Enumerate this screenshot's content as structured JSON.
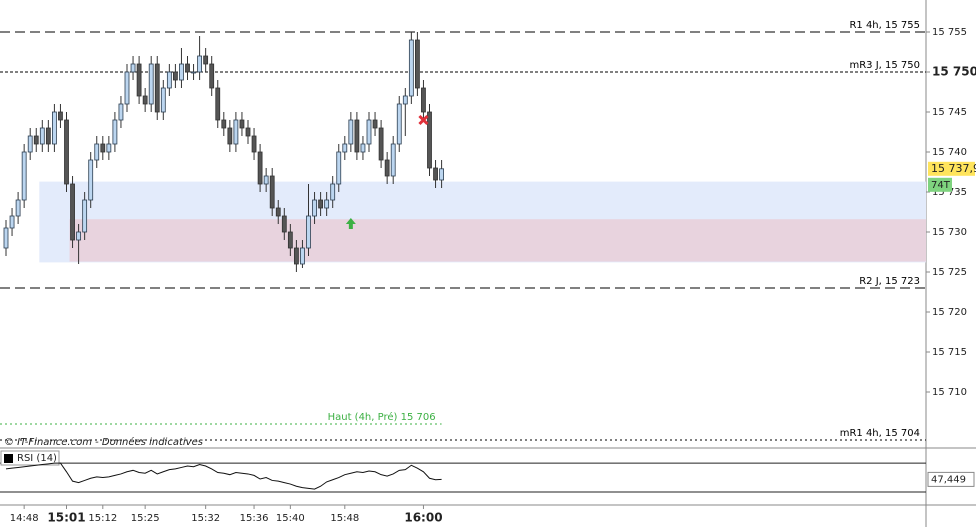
{
  "chart_data": {
    "type": "candlestick",
    "candles": [
      [
        15728,
        15731.5,
        15727,
        15730.5
      ],
      [
        15730.5,
        15733,
        15729.5,
        15732
      ],
      [
        15732,
        15735,
        15731,
        15734
      ],
      [
        15734,
        15741,
        15733,
        15740
      ],
      [
        15740,
        15743,
        15739,
        15742
      ],
      [
        15742,
        15743,
        15740,
        15741
      ],
      [
        15741,
        15744,
        15740,
        15743
      ],
      [
        15743,
        15744,
        15740,
        15741
      ],
      [
        15741,
        15746,
        15740,
        15745
      ],
      [
        15745,
        15746,
        15743,
        15744
      ],
      [
        15744,
        15745,
        15735,
        15736
      ],
      [
        15736,
        15737,
        15728,
        15729
      ],
      [
        15729,
        15731,
        15726,
        15730
      ],
      [
        15730,
        15735,
        15729,
        15734
      ],
      [
        15734,
        15740,
        15733,
        15739
      ],
      [
        15739,
        15742,
        15738,
        15741
      ],
      [
        15741,
        15742,
        15739,
        15740
      ],
      [
        15740,
        15742,
        15739,
        15741
      ],
      [
        15741,
        15745,
        15740,
        15744
      ],
      [
        15744,
        15747,
        15743,
        15746
      ],
      [
        15746,
        15751,
        15745,
        15750
      ],
      [
        15750,
        15752,
        15749,
        15751
      ],
      [
        15751,
        15752,
        15746,
        15747
      ],
      [
        15747,
        15748,
        15745,
        15746
      ],
      [
        15746,
        15752,
        15745,
        15751
      ],
      [
        15751,
        15752,
        15744,
        15745
      ],
      [
        15745,
        15749,
        15744,
        15748
      ],
      [
        15748,
        15751,
        15747,
        15750
      ],
      [
        15750,
        15751,
        15748,
        15749
      ],
      [
        15749,
        15753,
        15748,
        15751
      ],
      [
        15751,
        15752,
        15749,
        15750
      ],
      [
        15750,
        15751,
        15749,
        15750
      ],
      [
        15750,
        15754.5,
        15749,
        15752
      ],
      [
        15752,
        15753,
        15750,
        15751
      ],
      [
        15751,
        15752,
        15747,
        15748
      ],
      [
        15748,
        15749,
        15743,
        15744
      ],
      [
        15744,
        15745,
        15742,
        15743
      ],
      [
        15743,
        15744,
        15740,
        15741
      ],
      [
        15741,
        15745,
        15740,
        15744
      ],
      [
        15744,
        15745,
        15742,
        15743
      ],
      [
        15743,
        15744,
        15741,
        15742
      ],
      [
        15742,
        15743,
        15739,
        15740
      ],
      [
        15740,
        15741,
        15735,
        15736
      ],
      [
        15736,
        15738,
        15735,
        15737
      ],
      [
        15737,
        15738,
        15732,
        15733
      ],
      [
        15733,
        15734,
        15731,
        15732
      ],
      [
        15732,
        15733,
        15729,
        15730
      ],
      [
        15730,
        15731,
        15727,
        15728
      ],
      [
        15728,
        15729,
        15725,
        15726
      ],
      [
        15726,
        15729,
        15725.5,
        15728
      ],
      [
        15728,
        15736,
        15727,
        15732
      ],
      [
        15732,
        15735,
        15731,
        15734
      ],
      [
        15734,
        15735,
        15732,
        15733
      ],
      [
        15733,
        15735,
        15732,
        15734
      ],
      [
        15734,
        15737,
        15733,
        15736
      ],
      [
        15736,
        15741,
        15735,
        15740
      ],
      [
        15740,
        15742,
        15739,
        15741
      ],
      [
        15741,
        15745,
        15740,
        15744
      ],
      [
        15744,
        15745,
        15739,
        15740
      ],
      [
        15740,
        15742,
        15739,
        15741
      ],
      [
        15741,
        15745,
        15740,
        15744
      ],
      [
        15744,
        15745,
        15742,
        15743
      ],
      [
        15743,
        15744,
        15738,
        15739
      ],
      [
        15739,
        15740,
        15736,
        15737
      ],
      [
        15737,
        15742,
        15736,
        15741
      ],
      [
        15741,
        15747,
        15740,
        15746
      ],
      [
        15746,
        15748,
        15742,
        15747
      ],
      [
        15747,
        15755,
        15746,
        15754
      ],
      [
        15754,
        15755,
        15747,
        15748
      ],
      [
        15748,
        15749,
        15744,
        15745
      ],
      [
        15745,
        15746,
        15737,
        15738
      ],
      [
        15738,
        15739,
        15735.5,
        15736.5
      ],
      [
        15736.5,
        15739,
        15735.5,
        15737.9
      ]
    ],
    "bull_color": "#bcd6f0",
    "bear_color": "#555555",
    "ylim": [
      15703,
      15759
    ],
    "yticks": [
      {
        "value": 15755,
        "label": "15 755"
      },
      {
        "value": 15750,
        "label": "15 750",
        "bold": true
      },
      {
        "value": 15745,
        "label": "15 745"
      },
      {
        "value": 15740,
        "label": "15 740"
      },
      {
        "value": 15735,
        "label": "15 735"
      },
      {
        "value": 15730,
        "label": "15 730"
      },
      {
        "value": 15725,
        "label": "15 725"
      },
      {
        "value": 15720,
        "label": "15 720"
      },
      {
        "value": 15715,
        "label": "15 715"
      },
      {
        "value": 15710,
        "label": "15 710"
      }
    ],
    "xticks": [
      {
        "value": 3,
        "label": "14:48"
      },
      {
        "value": 10,
        "label": "15:01",
        "bold": true
      },
      {
        "value": 16,
        "label": "15:12"
      },
      {
        "value": 23,
        "label": "15:25"
      },
      {
        "value": 33,
        "label": "15:32"
      },
      {
        "value": 41,
        "label": "15:36"
      },
      {
        "value": 47,
        "label": "15:40"
      },
      {
        "value": 56,
        "label": "15:48"
      },
      {
        "value": 69,
        "label": "16:00",
        "bold": true
      }
    ],
    "zones": [
      {
        "from": 6,
        "low": 15726.2,
        "high": 15736.3,
        "color": "#e3ebfb"
      },
      {
        "from": 11,
        "low": 15726.3,
        "high": 15731.6,
        "color": "#e8d3de"
      }
    ],
    "levels": [
      {
        "label": "R1 4h, 15 755",
        "value": 15755,
        "dash": "long",
        "color": "#000000"
      },
      {
        "label": "mR3 J, 15 750",
        "value": 15750,
        "dash": "short",
        "color": "#000000"
      },
      {
        "label": "R2 J, 15 723",
        "value": 15723,
        "dash": "long",
        "color": "#000000"
      },
      {
        "label": "Haut (4h, Pré) 15 706",
        "value": 15706,
        "dash": "dotted",
        "color": "#3cb043",
        "to": 72
      },
      {
        "label": "mR1 4h, 15 704",
        "value": 15704,
        "dash": "dotted",
        "color": "#000000"
      }
    ],
    "markers": [
      {
        "kind": "buy",
        "index": 57,
        "value": 15731,
        "color": "#3cb043"
      },
      {
        "kind": "sell",
        "index": 69,
        "value": 15744,
        "color": "#e0303a"
      }
    ],
    "price_label": {
      "value": 15737.9,
      "label": "15 737,9"
    },
    "volume_label": "74T",
    "footer": "© IT-Finance.com - Données indicatives",
    "rsi": {
      "label": "RSI (14)",
      "ylim": [
        12,
        84
      ],
      "levels": [
        70,
        30
      ],
      "values": [
        62,
        63,
        64,
        65,
        66,
        67,
        68,
        69,
        70,
        70,
        58,
        45,
        43,
        46,
        49,
        51,
        50,
        51,
        53,
        55,
        58,
        60,
        57,
        56,
        60,
        55,
        58,
        61,
        62,
        64,
        66,
        65,
        68,
        66,
        62,
        57,
        56,
        54,
        57,
        56,
        55,
        53,
        48,
        50,
        46,
        45,
        43,
        41,
        38,
        36,
        35,
        34,
        38,
        44,
        47,
        50,
        54,
        56,
        58,
        57,
        59,
        58,
        54,
        52,
        55,
        60,
        61,
        67,
        63,
        58,
        49,
        47,
        47.449
      ],
      "last_label": "47,449"
    }
  }
}
